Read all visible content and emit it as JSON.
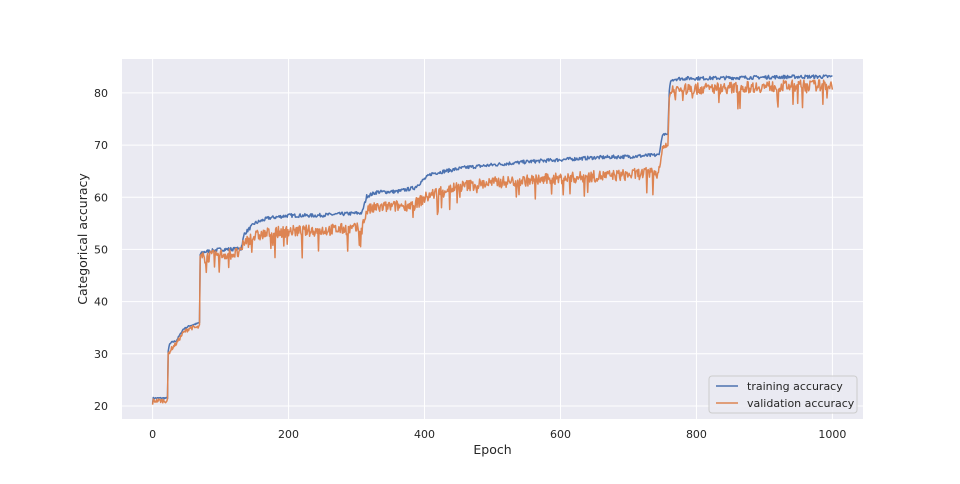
{
  "chart_data": {
    "type": "line",
    "xlabel": "Epoch",
    "ylabel": "Categorical accuracy",
    "xlim": [
      -45,
      1045
    ],
    "ylim": [
      17.5,
      86.5
    ],
    "xticks": [
      0,
      200,
      400,
      600,
      800,
      1000
    ],
    "yticks": [
      20,
      30,
      40,
      50,
      60,
      70,
      80
    ],
    "grid": true,
    "legend_position": "bottom-right",
    "series": [
      {
        "name": "training accuracy",
        "color": "#4c72b0",
        "x": [
          0,
          1,
          22,
          23,
          25,
          28,
          35,
          45,
          55,
          66,
          69,
          70,
          75,
          100,
          130,
          135,
          150,
          170,
          200,
          240,
          280,
          308,
          315,
          330,
          360,
          385,
          400,
          410,
          430,
          460,
          500,
          550,
          600,
          650,
          700,
          745,
          750,
          755,
          758,
          760,
          762,
          765,
          770,
          790,
          810,
          850,
          900,
          950,
          1000
        ],
        "y": [
          20.6,
          21.5,
          21.5,
          30.5,
          31.8,
          32.2,
          32.5,
          34.7,
          35.4,
          35.8,
          36,
          49,
          49.5,
          50,
          50.1,
          53,
          55,
          56,
          56.5,
          56.5,
          56.8,
          57,
          60.2,
          61,
          61.1,
          61.8,
          63.5,
          64.5,
          65,
          65.7,
          66.2,
          66.8,
          67.2,
          67.6,
          67.8,
          68.1,
          72,
          72.1,
          71.9,
          80.5,
          82.2,
          82.6,
          82.7,
          82.8,
          82.8,
          82.9,
          83,
          83.1,
          83.1
        ]
      },
      {
        "name": "validation accuracy",
        "color": "#dd8452",
        "x": [
          0,
          1,
          22,
          23,
          28,
          35,
          45,
          55,
          66,
          69,
          70,
          75,
          100,
          130,
          135,
          150,
          170,
          200,
          240,
          280,
          308,
          315,
          330,
          360,
          385,
          400,
          410,
          430,
          460,
          500,
          550,
          600,
          650,
          700,
          745,
          750,
          755,
          758,
          760,
          762,
          765,
          770,
          800,
          850,
          900,
          950,
          1000
        ],
        "y": [
          20.5,
          21,
          21,
          30,
          31,
          32,
          34,
          35,
          35,
          35.2,
          48.2,
          48.4,
          49,
          49.3,
          51.5,
          52.5,
          53.1,
          53.5,
          53.6,
          53.9,
          54,
          57.5,
          58,
          58.3,
          58.6,
          59.8,
          60.5,
          61.5,
          62.2,
          62.8,
          63.2,
          63.6,
          64,
          64.3,
          64.8,
          69.5,
          70,
          69.8,
          79,
          80.2,
          80.4,
          80.6,
          80.8,
          81,
          81.2,
          81.4,
          81.5
        ]
      }
    ]
  }
}
